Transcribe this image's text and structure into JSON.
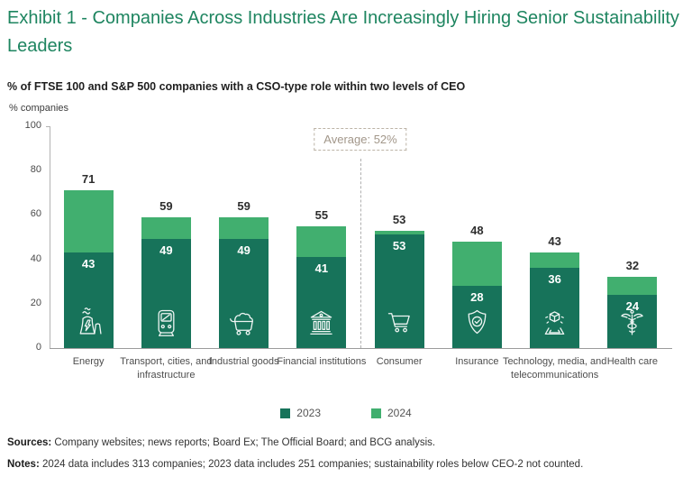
{
  "exhibit": {
    "title": "Exhibit 1 - Companies Across Industries Are Increasingly Hiring Senior Sustainability Leaders"
  },
  "chart_data": {
    "type": "bar",
    "variant": "overlay",
    "title": "% of FTSE 100 and S&P 500 companies with a CSO-type role within two levels of CEO",
    "ylabel": "% companies",
    "xlabel": "",
    "ylim": [
      0,
      100
    ],
    "yticks": [
      0,
      20,
      40,
      60,
      80,
      100
    ],
    "grid": false,
    "legend_position": "bottom",
    "categories": [
      "Energy",
      "Transport, cities, and infrastructure",
      "Industrial goods",
      "Financial institutions",
      "Consumer",
      "Insurance",
      "Technology, media, and telecommunications",
      "Health care"
    ],
    "icons": [
      "power-plant-icon",
      "train-icon",
      "mining-cart-icon",
      "bank-icon",
      "shopping-cart-icon",
      "shield-check-icon",
      "hologram-cube-icon",
      "caduceus-icon"
    ],
    "series": [
      {
        "name": "2023",
        "color": "#17735A",
        "values": [
          43,
          49,
          49,
          41,
          53,
          28,
          36,
          24
        ]
      },
      {
        "name": "2024",
        "color": "#41AF6F",
        "values": [
          71,
          59,
          59,
          55,
          53,
          48,
          43,
          32
        ]
      }
    ],
    "annotation": {
      "text": "Average: 52%",
      "after_category_index": 3
    }
  },
  "footer": {
    "sources_label": "Sources:",
    "sources_text": " Company websites; news reports; Board Ex; The Official Board; and BCG analysis.",
    "notes_label": "Notes:",
    "notes_text": " 2024 data includes 313 companies; 2023 data includes 251 companies; sustainability roles below CEO-2 not counted."
  },
  "colors": {
    "bar_2023": "#17735A",
    "bar_2024": "#41AF6F",
    "title_green": "#1E8560",
    "annotation_text": "#A2978A"
  }
}
